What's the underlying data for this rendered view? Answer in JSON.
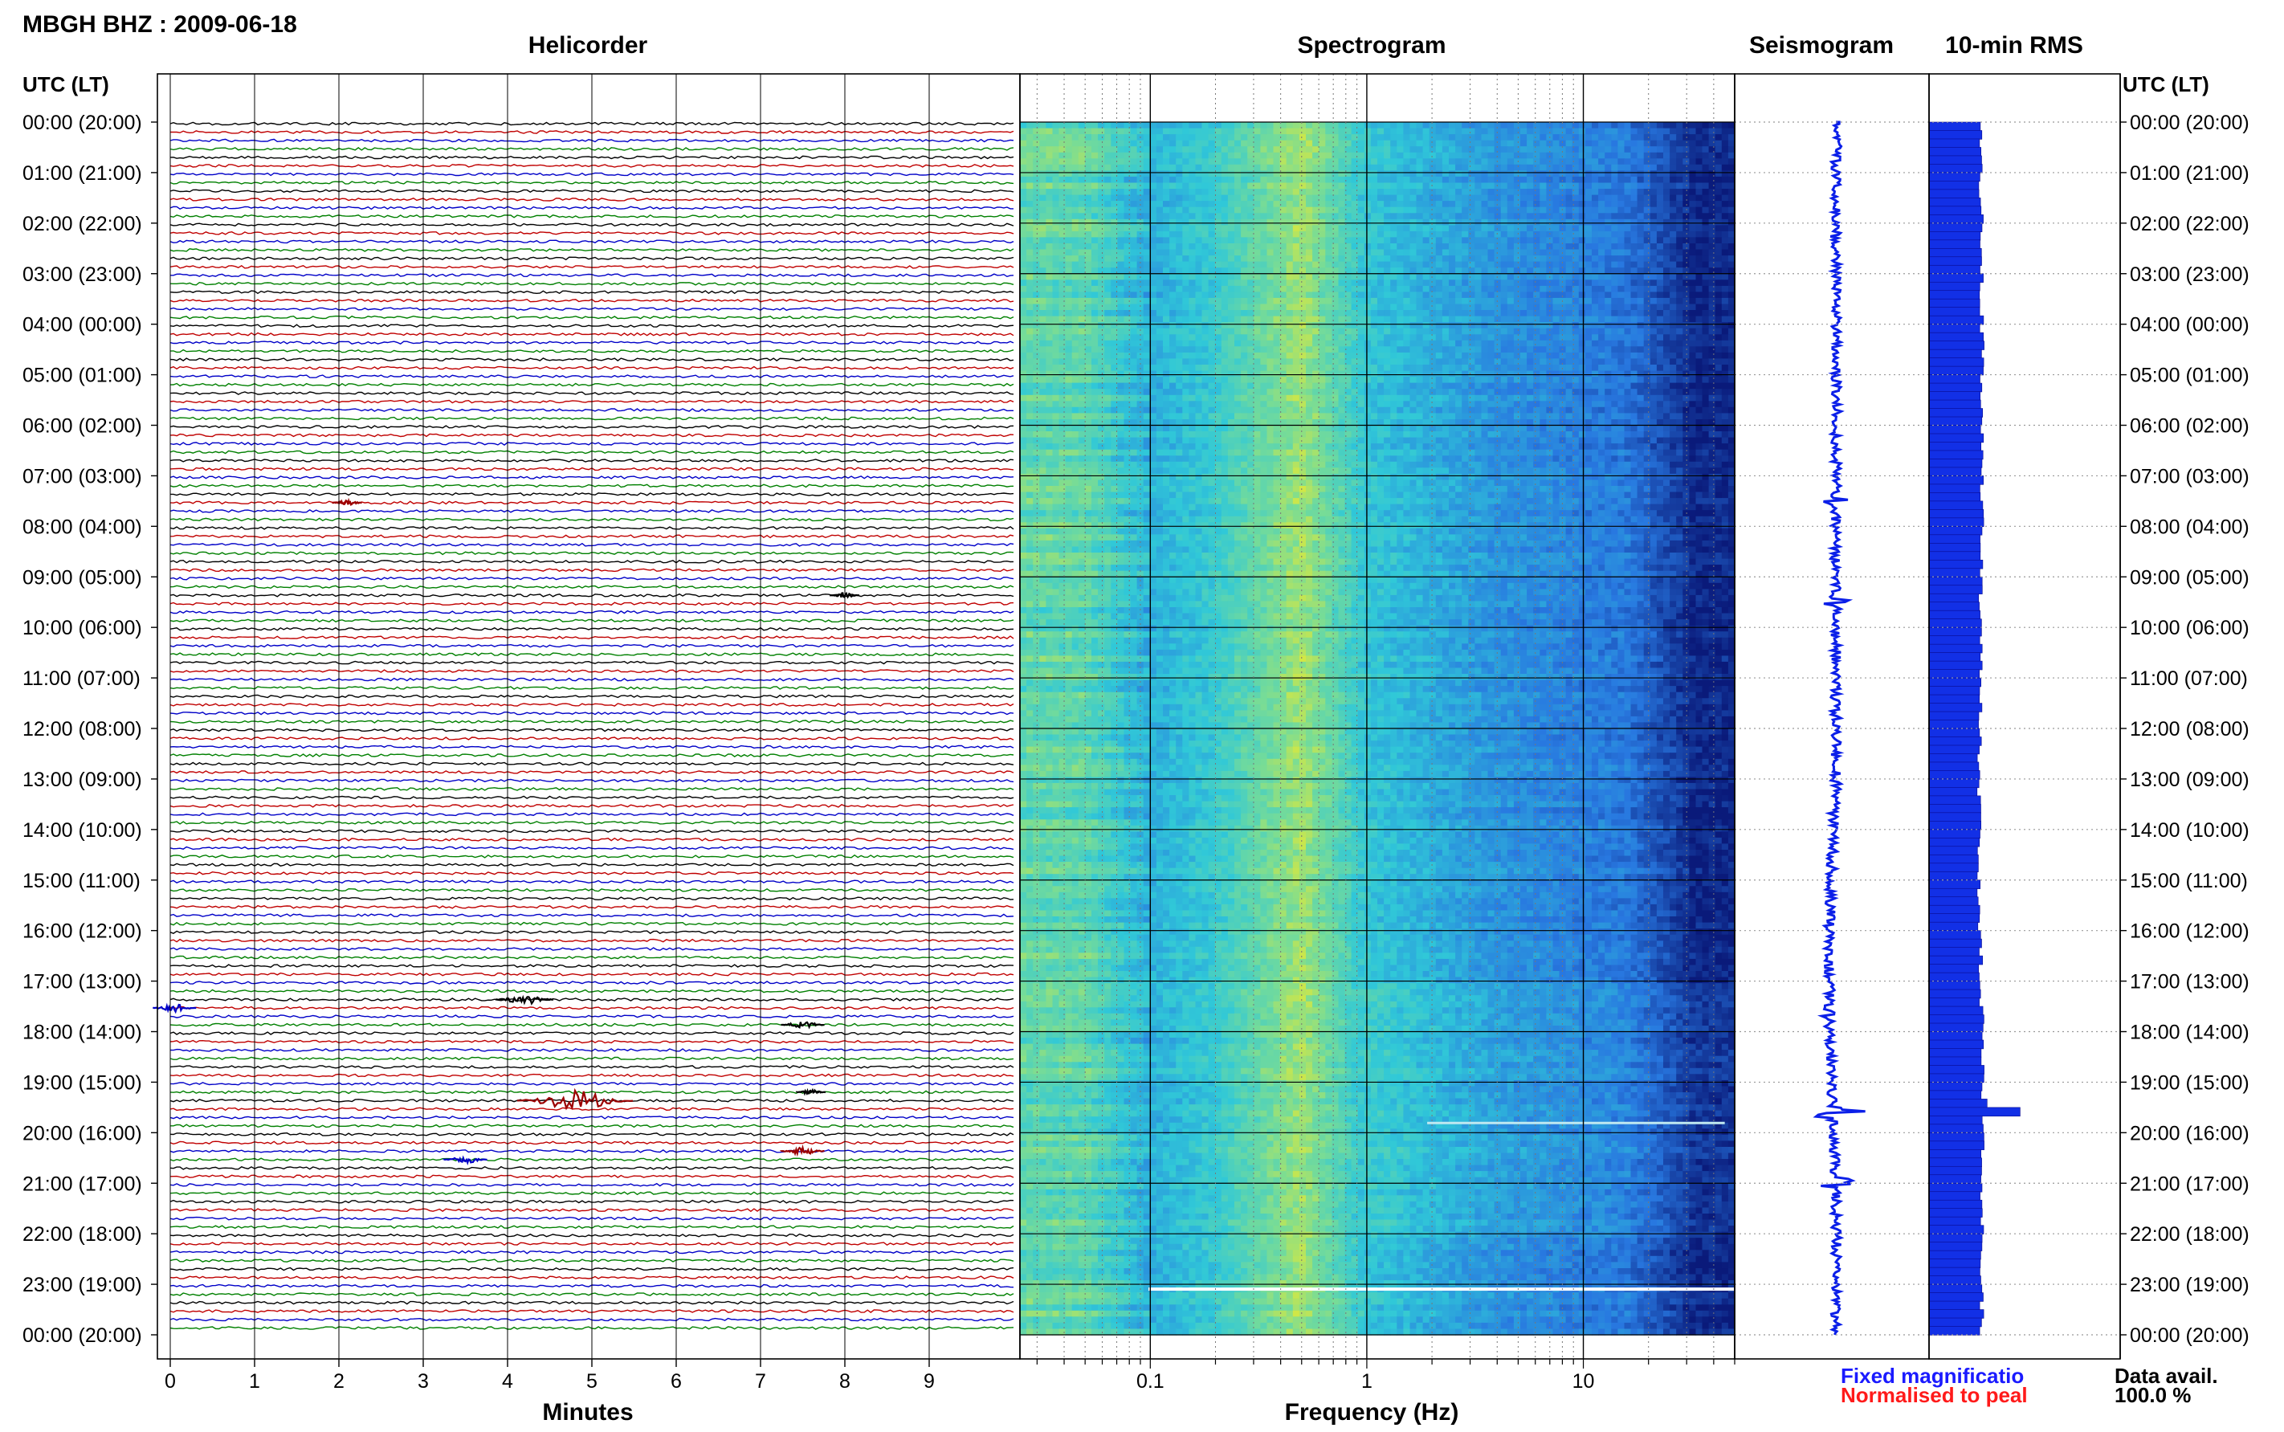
{
  "header": {
    "station_label": "MBGH BHZ : 2009-06-18",
    "helicorder_title": "Helicorder",
    "spectrogram_title": "Spectrogram",
    "seismogram_title": "Seismogram",
    "rms_title": "10-min RMS",
    "utc_label_left": "UTC (LT)",
    "utc_label_right": "UTC (LT)"
  },
  "footer": {
    "minutes_label": "Minutes",
    "frequency_label": "Frequency (Hz)",
    "fixed_label": "Fixed magnificatio",
    "normalised_label": "Normalised to peal",
    "data_avail_label": "Data avail.",
    "data_avail_value": "100.0 %"
  },
  "colors": {
    "trace_cycle": [
      "#000000",
      "#c00000",
      "#0000c8",
      "#008000"
    ],
    "trace_red": "#9b0000",
    "seismo_blue": "#0b1fe8",
    "rms_blue": "#1230e6",
    "fixed_blue": "#1a1aff",
    "norm_red": "#ff1a1a",
    "spec_dark": "#0a1a7a",
    "spec_mid": "#2878e0",
    "spec_cyan": "#30c8d8",
    "spec_yellow": "#d8e840"
  },
  "chart_data": [
    {
      "type": "line",
      "name": "helicorder",
      "title": "Helicorder",
      "xlabel": "Minutes",
      "x_ticks": [
        "0",
        "1",
        "2",
        "3",
        "4",
        "5",
        "6",
        "7",
        "8",
        "9"
      ],
      "xlim": [
        0,
        10
      ],
      "row_labels": [
        "00:00 (20:00)",
        "01:00 (21:00)",
        "02:00 (22:00)",
        "03:00 (23:00)",
        "04:00 (00:00)",
        "05:00 (01:00)",
        "06:00 (02:00)",
        "07:00 (03:00)",
        "08:00 (04:00)",
        "09:00 (05:00)",
        "10:00 (06:00)",
        "11:00 (07:00)",
        "12:00 (08:00)",
        "13:00 (09:00)",
        "14:00 (10:00)",
        "15:00 (11:00)",
        "16:00 (12:00)",
        "17:00 (13:00)",
        "18:00 (14:00)",
        "19:00 (15:00)",
        "20:00 (16:00)",
        "21:00 (17:00)",
        "22:00 (18:00)",
        "23:00 (19:00)",
        "00:00 (20:00)"
      ],
      "traces_per_hour": 6,
      "events": [
        {
          "trace": 45,
          "minute": 2.1,
          "size": 2,
          "color": "red"
        },
        {
          "trace": 56,
          "minute": 8.0,
          "size": 2,
          "color": "black"
        },
        {
          "trace": 104,
          "minute": 4.2,
          "size": 4,
          "color": "black"
        },
        {
          "trace": 105,
          "minute": 0.05,
          "size": 3,
          "color": "blue"
        },
        {
          "trace": 107,
          "minute": 7.5,
          "size": 3,
          "color": "black"
        },
        {
          "trace": 115,
          "minute": 7.6,
          "size": 2,
          "color": "black"
        },
        {
          "trace": 116,
          "minute": 4.8,
          "size": 8,
          "color": "red"
        },
        {
          "trace": 123,
          "minute": 3.5,
          "size": 3,
          "color": "blue"
        },
        {
          "trace": 122,
          "minute": 7.5,
          "size": 3,
          "color": "red"
        }
      ]
    },
    {
      "type": "heatmap",
      "name": "spectrogram",
      "title": "Spectrogram",
      "xlabel": "Frequency (Hz)",
      "x_scale": "log",
      "xlim": [
        0.025,
        50
      ],
      "x_tick_labels": [
        "0.1",
        "1",
        "10"
      ],
      "x_tick_values": [
        0.1,
        1,
        10
      ]
    },
    {
      "type": "line",
      "name": "seismogram",
      "title": "Seismogram",
      "spikes": [
        {
          "hour": 7.5,
          "amp": 0.25
        },
        {
          "hour": 9.5,
          "amp": 0.35
        },
        {
          "hour": 17.6,
          "amp": 0.45
        },
        {
          "hour": 19.6,
          "amp": 1.0
        },
        {
          "hour": 21.0,
          "amp": 0.85
        }
      ]
    },
    {
      "type": "bar",
      "name": "rms",
      "title": "10-min RMS",
      "orientation": "horizontal",
      "bins": 144,
      "baseline_level": 0.45,
      "peak": {
        "bin": 117,
        "value": 0.8
      }
    }
  ]
}
